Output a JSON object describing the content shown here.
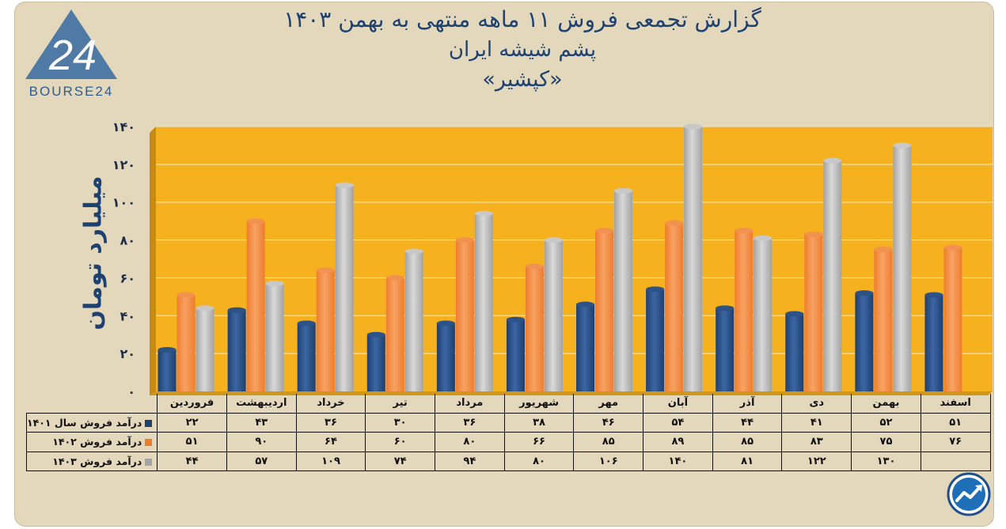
{
  "title": {
    "line1": "گزارش تجمعی فروش ۱۱ ماهه منتهی به بهمن ۱۴۰۳",
    "line2": "پشم شیشه ایران",
    "line3": "«کپشیر»"
  },
  "logo": {
    "text": "BOURSE24",
    "icon": "bourse24-logo"
  },
  "badge": {
    "icon": "trend-arrow-icon"
  },
  "colors": {
    "plot_bg": "#f5b11e",
    "frame_bg": "#e3d7bc",
    "series_1401": "#1f3f6e",
    "series_1402": "#ee7d2e",
    "series_1403": "#a3a3a3",
    "title": "#1d4170"
  },
  "chart_data": {
    "type": "bar",
    "ylabel": "میلیارد تومان",
    "ylim": [
      0,
      140
    ],
    "yticks": [
      0,
      20,
      40,
      60,
      80,
      100,
      120,
      140
    ],
    "ytick_labels": [
      "۰",
      "۲۰",
      "۴۰",
      "۶۰",
      "۸۰",
      "۱۰۰",
      "۱۲۰",
      "۱۴۰"
    ],
    "grid": true,
    "categories": [
      "فروردین",
      "اردیبهشت",
      "خرداد",
      "تیر",
      "مرداد",
      "شهریور",
      "مهر",
      "آبان",
      "آذر",
      "دی",
      "بهمن",
      "اسفند"
    ],
    "series": [
      {
        "name": "درآمد فروش سال ۱۴۰۱",
        "values": [
          22,
          43,
          36,
          30,
          36,
          38,
          46,
          54,
          44,
          41,
          52,
          51
        ],
        "labels": [
          "۲۲",
          "۴۳",
          "۳۶",
          "۳۰",
          "۳۶",
          "۳۸",
          "۴۶",
          "۵۴",
          "۴۴",
          "۴۱",
          "۵۲",
          "۵۱"
        ]
      },
      {
        "name": "درآمد فروش ۱۴۰۲",
        "values": [
          51,
          90,
          64,
          60,
          80,
          66,
          85,
          89,
          85,
          83,
          75,
          76
        ],
        "labels": [
          "۵۱",
          "۹۰",
          "۶۴",
          "۶۰",
          "۸۰",
          "۶۶",
          "۸۵",
          "۸۹",
          "۸۵",
          "۸۳",
          "۷۵",
          "۷۶"
        ]
      },
      {
        "name": "درآمد فروش ۱۴۰۳",
        "values": [
          44,
          57,
          109,
          74,
          94,
          80,
          106,
          140,
          81,
          122,
          130,
          null
        ],
        "labels": [
          "۴۴",
          "۵۷",
          "۱۰۹",
          "۷۴",
          "۹۴",
          "۸۰",
          "۱۰۶",
          "۱۴۰",
          "۸۱",
          "۱۲۲",
          "۱۳۰",
          ""
        ]
      }
    ]
  }
}
